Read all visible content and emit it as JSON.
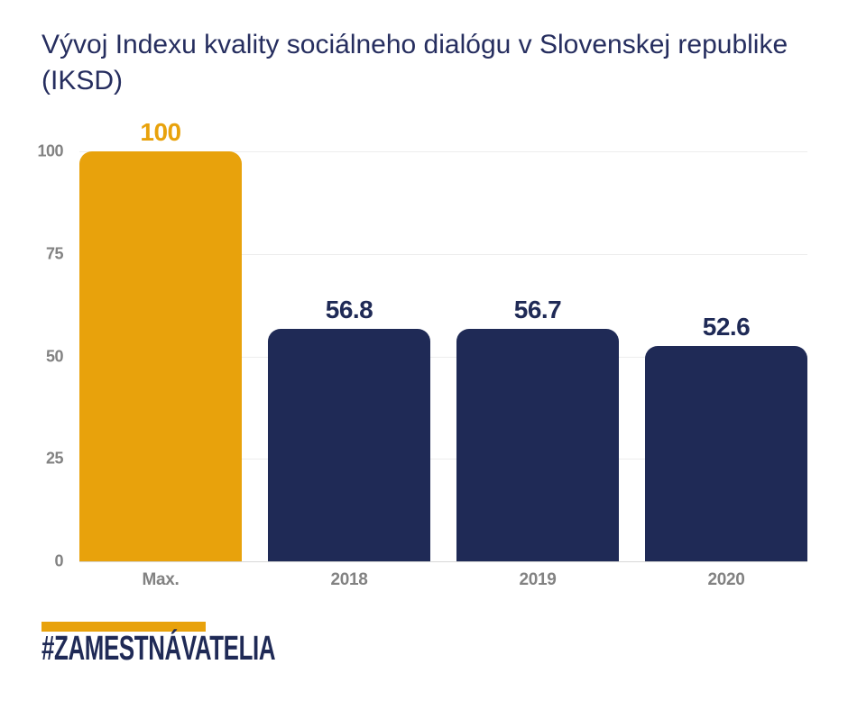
{
  "title": "Vývoj Indexu kvality sociálneho dialógu v Slovenskej republike (IKSD)",
  "footer": {
    "hashtag": "#ZAMESTNÁVATELIA"
  },
  "colors": {
    "orange": "#e8a20c",
    "navy": "#1f2a56",
    "title_navy": "#262e5f",
    "axis_gray": "#828282",
    "gridline": "#ededed",
    "baseline": "#d7d7d7",
    "background": "#ffffff"
  },
  "chart_data": {
    "type": "bar",
    "title": "Vývoj Indexu kvality sociálneho dialógu v Slovenskej republike (IKSD)",
    "categories": [
      "Max.",
      "2018",
      "2019",
      "2020"
    ],
    "values": [
      100,
      56.8,
      56.7,
      52.6
    ],
    "value_labels": [
      "100",
      "56.8",
      "56.7",
      "52.6"
    ],
    "bar_colors": [
      "#e8a20c",
      "#1f2a56",
      "#1f2a56",
      "#1f2a56"
    ],
    "value_label_colors": [
      "#e8a20c",
      "#1f2a56",
      "#1f2a56",
      "#1f2a56"
    ],
    "xlabel": "",
    "ylabel": "",
    "ylim": [
      0,
      100
    ],
    "yticks": [
      0,
      25,
      50,
      75,
      100
    ],
    "grid": true,
    "legend": false,
    "legend_position": "none"
  }
}
